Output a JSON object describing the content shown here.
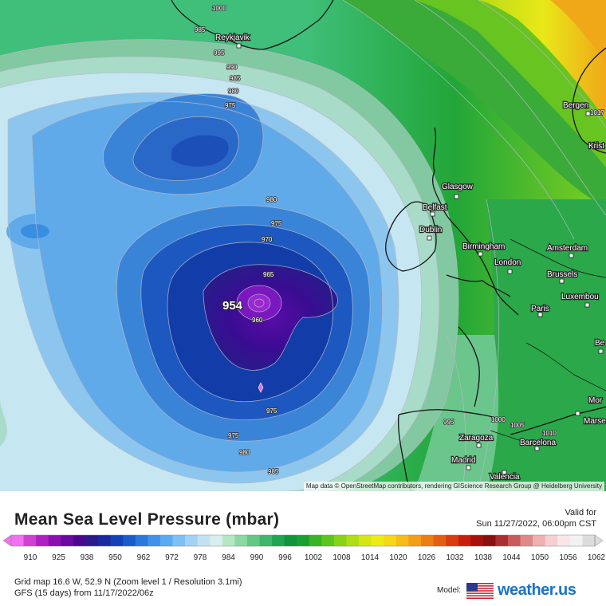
{
  "map": {
    "attribution": "Map data © OpenStreetMap contributors, rendering GIScience Research Group @ Heidelberg University",
    "low_center_label": "954",
    "isobar_labels": [
      "1000",
      "995",
      "990",
      "985",
      "980",
      "975",
      "980",
      "975",
      "970",
      "965",
      "960",
      "975",
      "975",
      "985",
      "980",
      "985",
      "995",
      "1000",
      "1005",
      "1010",
      "1017"
    ],
    "cities": [
      "Reykjavik",
      "Bergen",
      "Krist",
      "Glasgow",
      "Belfast",
      "Dublin",
      "Birmingham",
      "Amsterdam",
      "London",
      "Brussels",
      "Luxembou",
      "Paris",
      "Be",
      "Mor",
      "Marse",
      "Zaragoza",
      "Barcelona",
      "Madrid",
      "Valencia"
    ]
  },
  "legend": {
    "title": "Mean Sea Level Pressure (mbar)",
    "valid_for_label": "Valid for",
    "valid_time": "Sun 11/27/2022, 06:00pm CST",
    "ticks": [
      "910",
      "925",
      "938",
      "950",
      "962",
      "972",
      "978",
      "984",
      "990",
      "996",
      "1002",
      "1008",
      "1014",
      "1020",
      "1026",
      "1032",
      "1038",
      "1044",
      "1050",
      "1056",
      "1062"
    ],
    "colors": [
      "#f070f0",
      "#d040d0",
      "#b020c0",
      "#8a10b0",
      "#6a0aa0",
      "#4a0890",
      "#2a1a8a",
      "#1a2aa0",
      "#1540b8",
      "#1a5ccc",
      "#2a78dc",
      "#3e92e8",
      "#5aaaf0",
      "#7ec0f4",
      "#a2d2f6",
      "#c2e2f4",
      "#d8eef0",
      "#b6e6c4",
      "#8cd8a2",
      "#62c882",
      "#3eb868",
      "#22a450",
      "#10943e",
      "#1aa030",
      "#38b424",
      "#5cc61c",
      "#86d418",
      "#b0de16",
      "#d6e614",
      "#eeea18",
      "#f6d818",
      "#f6bc18",
      "#f29e16",
      "#ec7e14",
      "#e45e12",
      "#d83c10",
      "#c81e0e",
      "#a8100c",
      "#881010",
      "#a83030",
      "#c85a5a",
      "#e08888",
      "#eeb0b0",
      "#f6d0d0",
      "#fae6e6",
      "#f2f2f2",
      "#dcdcdc"
    ],
    "grid_info": "Grid map 16.6 W, 52.9 N (Zoom level 1 / Resolution 3.1mi)",
    "run_info": "GFS (15 days) from  11/17/2022/06z",
    "model_label": "Model:",
    "brand": "weather.us"
  }
}
